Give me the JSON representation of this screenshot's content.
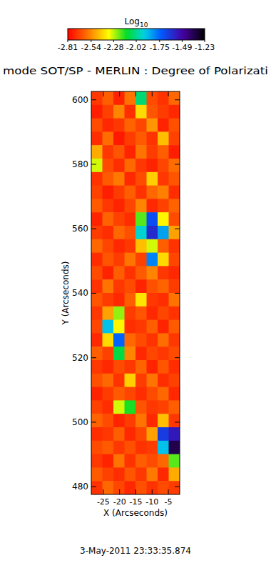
{
  "chart_data": {
    "type": "heatmap",
    "title": "mode SOT/SP - MERLIN : Degree of Polarizati",
    "x_label": "X (Arcseconds)",
    "y_label": "Y (Arcseconds)",
    "xlim": [
      -28.7,
      -1.5
    ],
    "ylim": [
      477.6,
      602.6
    ],
    "xticks": [
      -25,
      -20,
      -15,
      -10,
      -5
    ],
    "yticks": [
      480,
      500,
      520,
      540,
      560,
      580,
      600
    ],
    "cells": [
      [
        -2.7,
        -2.62,
        -2.74,
        -2.58,
        -2.05,
        -2.66,
        -2.71,
        -2.6
      ],
      [
        -2.75,
        -2.68,
        -2.55,
        -2.72,
        -2.4,
        -2.64,
        -2.69,
        -2.73
      ],
      [
        -2.66,
        -2.73,
        -2.7,
        -2.61,
        -2.67,
        -2.52,
        -2.74,
        -2.65
      ],
      [
        -2.72,
        -2.59,
        -2.76,
        -2.69,
        -2.63,
        -2.71,
        -2.45,
        -2.68
      ],
      [
        -2.48,
        -2.7,
        -2.64,
        -2.74,
        -2.58,
        -2.69,
        -2.62,
        -2.75
      ],
      [
        -2.3,
        -2.66,
        -2.72,
        -2.6,
        -2.7,
        -2.74,
        -2.67,
        -2.59
      ],
      [
        -2.71,
        -2.63,
        -2.57,
        -2.73,
        -2.66,
        -2.42,
        -2.7,
        -2.64
      ],
      [
        -2.68,
        -2.75,
        -2.69,
        -2.62,
        -2.71,
        -2.6,
        -2.56,
        -2.72
      ],
      [
        -2.63,
        -2.7,
        -2.74,
        -2.67,
        -2.55,
        -2.73,
        -2.68,
        -2.61
      ],
      [
        -2.74,
        -2.61,
        -2.68,
        -2.72,
        -2.2,
        -1.7,
        -2.35,
        -2.66
      ],
      [
        -2.69,
        -2.72,
        -2.6,
        -2.65,
        -1.95,
        -1.6,
        -1.85,
        -2.5
      ],
      [
        -2.6,
        -2.67,
        -2.73,
        -2.7,
        -2.45,
        -2.3,
        -2.62,
        -2.71
      ],
      [
        -2.72,
        -2.64,
        -2.69,
        -2.58,
        -2.68,
        -1.8,
        -2.4,
        -2.67
      ],
      [
        -2.66,
        -2.74,
        -2.62,
        -2.71,
        -2.63,
        -2.55,
        -2.7,
        -2.73
      ],
      [
        -2.71,
        -2.58,
        -2.7,
        -2.66,
        -2.74,
        -2.65,
        -2.61,
        -2.69
      ],
      [
        -2.64,
        -2.69,
        -2.73,
        -2.62,
        -2.38,
        -2.7,
        -2.72,
        -2.58
      ],
      [
        -2.7,
        -2.5,
        -2.25,
        -2.69,
        -2.64,
        -2.73,
        -2.67,
        -2.71
      ],
      [
        -2.67,
        -1.9,
        -2.35,
        -2.72,
        -2.7,
        -2.62,
        -2.74,
        -2.63
      ],
      [
        -2.73,
        -2.4,
        -1.75,
        -2.6,
        -2.66,
        -2.71,
        -2.59,
        -2.7
      ],
      [
        -2.62,
        -2.68,
        -2.1,
        -2.55,
        -2.73,
        -2.67,
        -2.7,
        -2.66
      ],
      [
        -2.7,
        -2.73,
        -2.66,
        -2.7,
        -2.61,
        -2.74,
        -2.64,
        -2.72
      ],
      [
        -2.65,
        -2.6,
        -2.71,
        -2.42,
        -2.69,
        -2.58,
        -2.72,
        -2.68
      ],
      [
        -2.74,
        -2.69,
        -2.63,
        -2.67,
        -2.72,
        -2.66,
        -2.6,
        -2.73
      ],
      [
        -2.68,
        -2.72,
        -2.3,
        -2.15,
        -2.64,
        -2.7,
        -2.68,
        -2.62
      ],
      [
        -2.61,
        -2.66,
        -2.74,
        -2.69,
        -2.58,
        -2.73,
        -2.45,
        -2.7
      ],
      [
        -2.72,
        -2.7,
        -2.62,
        -2.73,
        -2.67,
        -2.5,
        -1.65,
        -1.55
      ],
      [
        -2.66,
        -2.63,
        -2.7,
        -2.65,
        -2.71,
        -2.69,
        -1.9,
        -1.35
      ],
      [
        -2.7,
        -2.74,
        -2.58,
        -2.71,
        -2.62,
        -2.66,
        -2.6,
        -2.2
      ],
      [
        -2.63,
        -2.68,
        -2.72,
        -2.64,
        -2.7,
        -2.57,
        -2.73,
        -2.48
      ],
      [
        -2.71,
        -2.6,
        -2.67,
        -2.73,
        -2.65,
        -2.71,
        -2.66,
        -2.69
      ]
    ],
    "colorbar": {
      "label": "Log10",
      "range": [
        -2.81,
        -1.23
      ],
      "ticks": [
        -2.81,
        -2.54,
        -2.28,
        -2.02,
        -1.75,
        -1.49,
        -1.23
      ]
    },
    "date": "3-May-2011 23:33:35.874"
  }
}
